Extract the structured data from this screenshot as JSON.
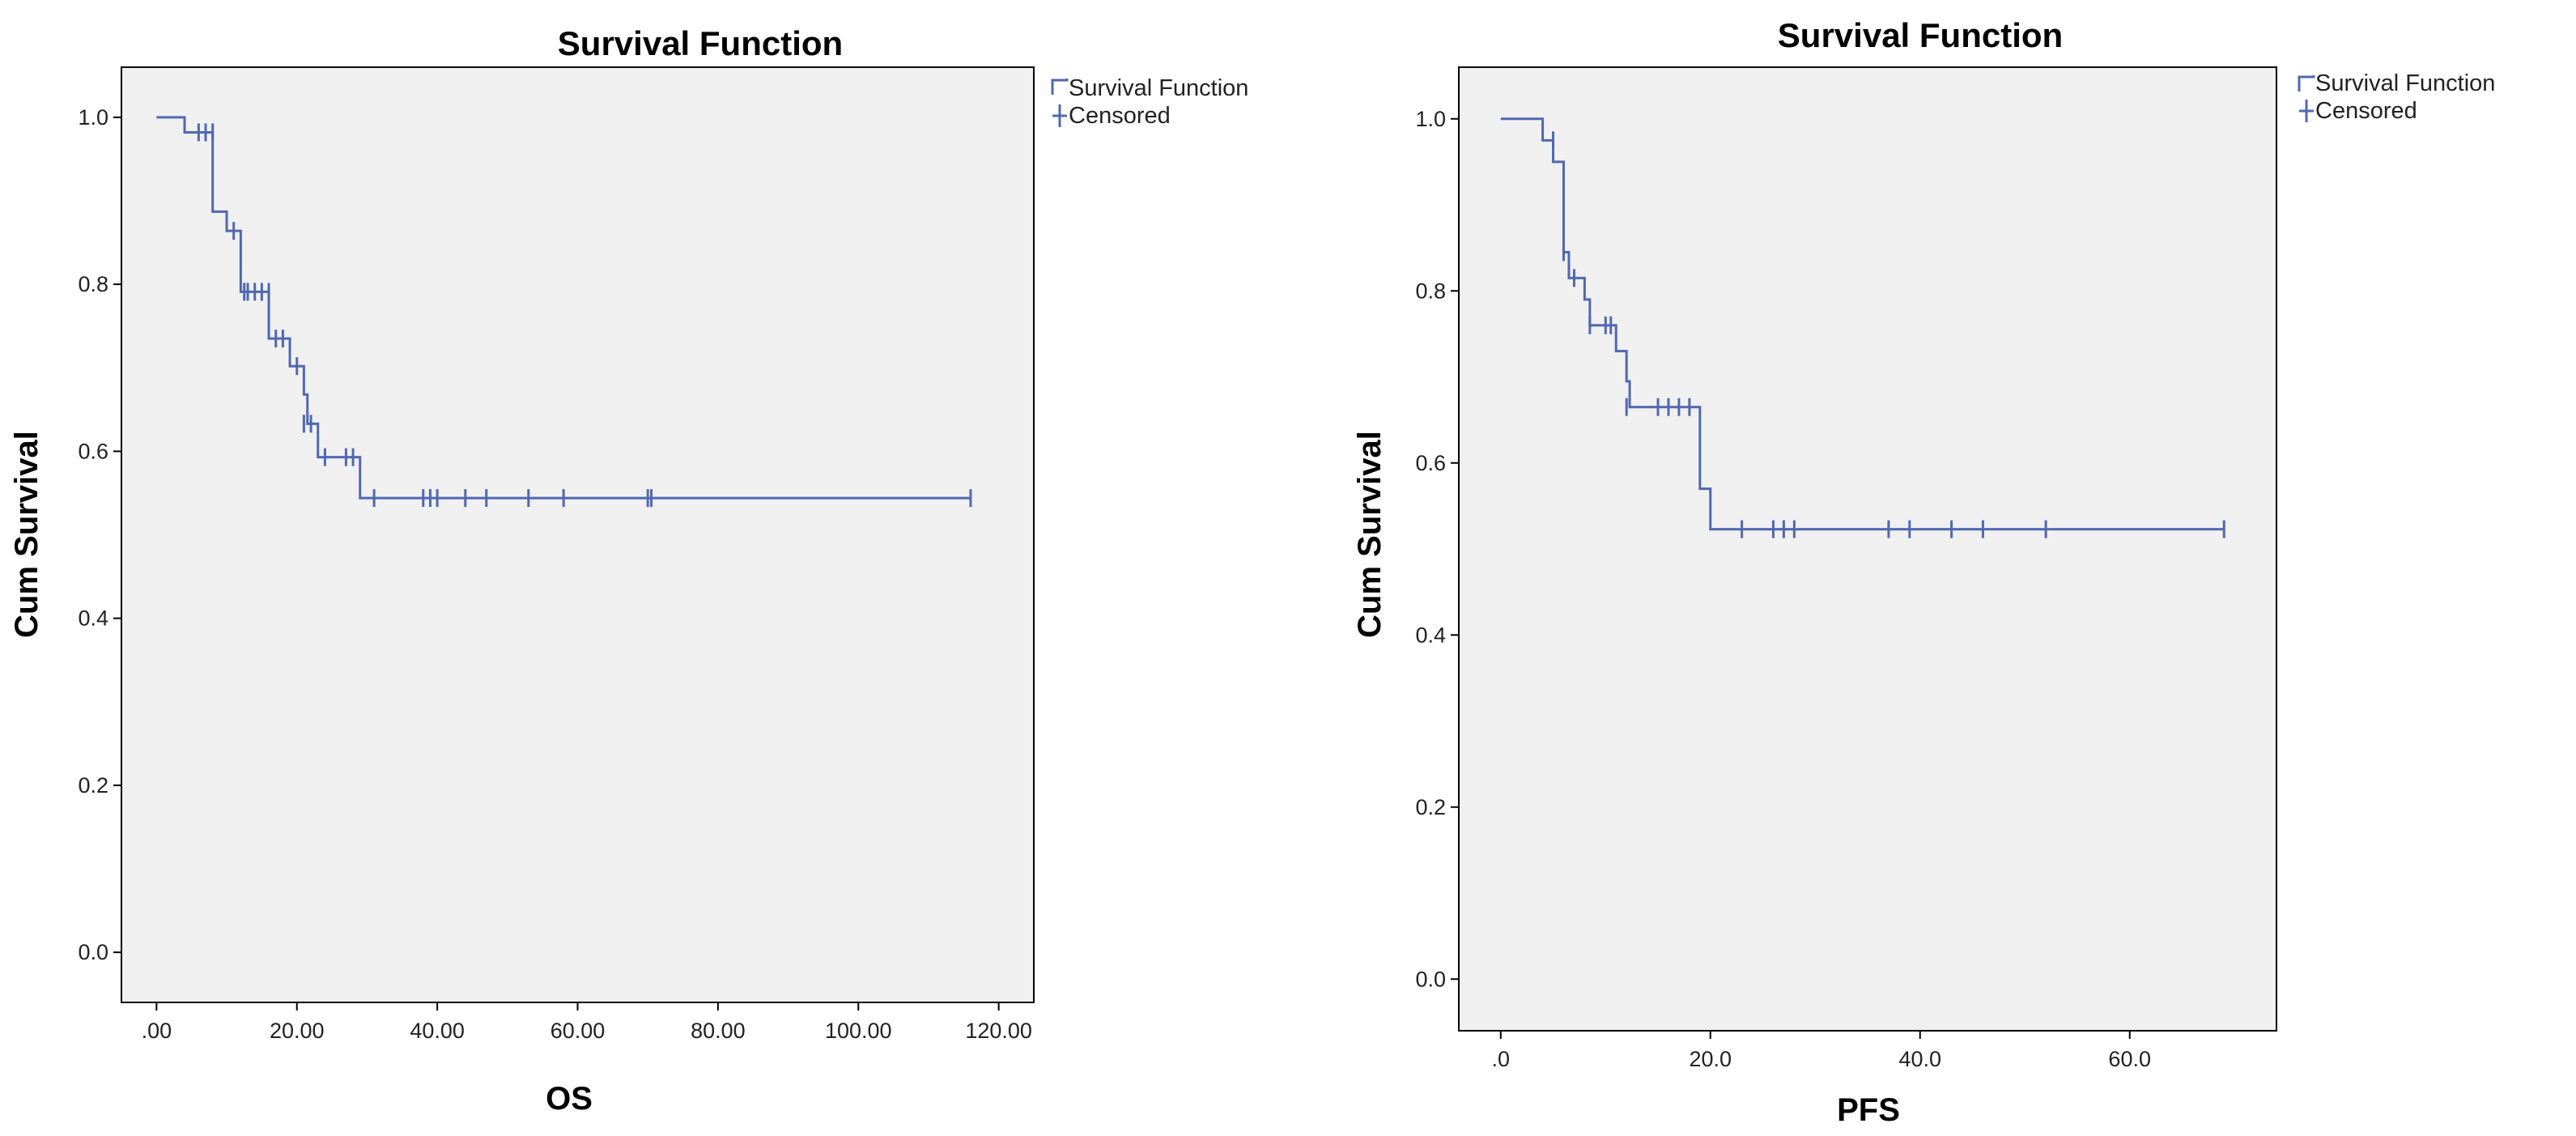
{
  "chart_data": [
    {
      "type": "line",
      "title": "Survival Function",
      "xlabel": "OS",
      "ylabel": "Cum Survival",
      "xlim": [
        -5,
        125
      ],
      "ylim": [
        -0.06,
        1.06
      ],
      "xticks": [
        0,
        20,
        40,
        60,
        80,
        100,
        120
      ],
      "xtick_labels": [
        ".00",
        "20.00",
        "40.00",
        "60.00",
        "80.00",
        "100.00",
        "120.00"
      ],
      "yticks": [
        0,
        0.2,
        0.4,
        0.6,
        0.8,
        1.0
      ],
      "ytick_labels": [
        "0.0",
        "0.2",
        "0.4",
        "0.6",
        "0.8",
        "1.0"
      ],
      "grid": false,
      "legend": [
        "Survival Function",
        "Censored"
      ],
      "legend_position": "outside-top-right",
      "colors": {
        "line": "#5068b0",
        "plot_bg": "#f0f0f0",
        "frame": "#000000"
      },
      "series": [
        {
          "name": "Survival Function",
          "steps": [
            [
              0,
              1.0
            ],
            [
              4,
              0.982
            ],
            [
              8,
              0.887
            ],
            [
              10,
              0.864
            ],
            [
              12,
              0.791
            ],
            [
              16,
              0.735
            ],
            [
              19,
              0.702
            ],
            [
              21,
              0.668
            ],
            [
              21.5,
              0.633
            ],
            [
              23,
              0.593
            ],
            [
              29,
              0.544
            ],
            [
              116,
              0.544
            ]
          ]
        },
        {
          "name": "Censored",
          "points": [
            [
              6,
              0.982
            ],
            [
              7,
              0.982
            ],
            [
              8,
              0.982
            ],
            [
              11,
              0.864
            ],
            [
              12.5,
              0.791
            ],
            [
              13,
              0.791
            ],
            [
              14,
              0.791
            ],
            [
              15,
              0.791
            ],
            [
              16,
              0.791
            ],
            [
              17,
              0.735
            ],
            [
              18,
              0.735
            ],
            [
              20,
              0.702
            ],
            [
              21,
              0.633
            ],
            [
              22,
              0.633
            ],
            [
              24,
              0.593
            ],
            [
              27,
              0.593
            ],
            [
              28,
              0.593
            ],
            [
              31,
              0.544
            ],
            [
              38,
              0.544
            ],
            [
              39,
              0.544
            ],
            [
              40,
              0.544
            ],
            [
              44,
              0.544
            ],
            [
              47,
              0.544
            ],
            [
              53,
              0.544
            ],
            [
              58,
              0.544
            ],
            [
              70,
              0.544
            ],
            [
              70.5,
              0.544
            ],
            [
              116,
              0.544
            ]
          ]
        }
      ]
    },
    {
      "type": "line",
      "title": "Survival Function",
      "xlabel": "PFS",
      "ylabel": "Cum Survival",
      "xlim": [
        -4,
        74
      ],
      "ylim": [
        -0.06,
        1.06
      ],
      "xticks": [
        0,
        20,
        40,
        60
      ],
      "xtick_labels": [
        ".0",
        "20.0",
        "40.0",
        "60.0"
      ],
      "yticks": [
        0,
        0.2,
        0.4,
        0.6,
        0.8,
        1.0
      ],
      "ytick_labels": [
        "0.0",
        "0.2",
        "0.4",
        "0.6",
        "0.8",
        "1.0"
      ],
      "grid": false,
      "legend": [
        "Survival Function",
        "Censored"
      ],
      "legend_position": "outside-top-right",
      "colors": {
        "line": "#5068b0",
        "plot_bg": "#f0f0f0",
        "frame": "#000000"
      },
      "series": [
        {
          "name": "Survival Function",
          "steps": [
            [
              0,
              1.0
            ],
            [
              4,
              0.975
            ],
            [
              5,
              0.95
            ],
            [
              6,
              0.845
            ],
            [
              6.5,
              0.815
            ],
            [
              8,
              0.79
            ],
            [
              8.5,
              0.76
            ],
            [
              11,
              0.73
            ],
            [
              12,
              0.695
            ],
            [
              12.3,
              0.665
            ],
            [
              19,
              0.57
            ],
            [
              20,
              0.523
            ],
            [
              69,
              0.523
            ]
          ]
        },
        {
          "name": "Censored",
          "points": [
            [
              5,
              0.975
            ],
            [
              6,
              0.845
            ],
            [
              7,
              0.815
            ],
            [
              8.5,
              0.76
            ],
            [
              10,
              0.76
            ],
            [
              10.5,
              0.76
            ],
            [
              12,
              0.665
            ],
            [
              15,
              0.665
            ],
            [
              16,
              0.665
            ],
            [
              17,
              0.665
            ],
            [
              18,
              0.665
            ],
            [
              23,
              0.523
            ],
            [
              26,
              0.523
            ],
            [
              27,
              0.523
            ],
            [
              28,
              0.523
            ],
            [
              37,
              0.523
            ],
            [
              39,
              0.523
            ],
            [
              43,
              0.523
            ],
            [
              46,
              0.523
            ],
            [
              52,
              0.523
            ],
            [
              69,
              0.523
            ]
          ]
        }
      ]
    }
  ]
}
